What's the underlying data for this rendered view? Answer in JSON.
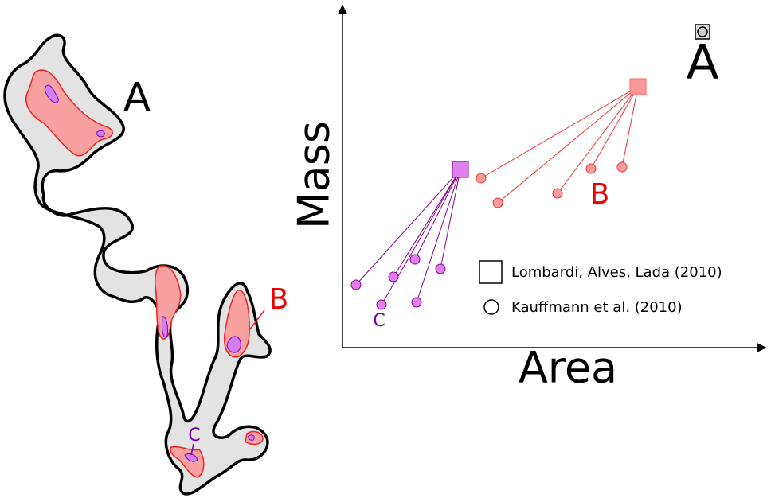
{
  "map": {
    "labels": [
      "A",
      "B",
      "C"
    ]
  },
  "plot": {
    "y_label": "Mass",
    "x_label": "Area",
    "labels": [
      "A",
      "B",
      "C"
    ],
    "legend": [
      "Lombardi, Alves, Lada (2010)",
      "Kauffmann et al. (2010)"
    ]
  }
}
